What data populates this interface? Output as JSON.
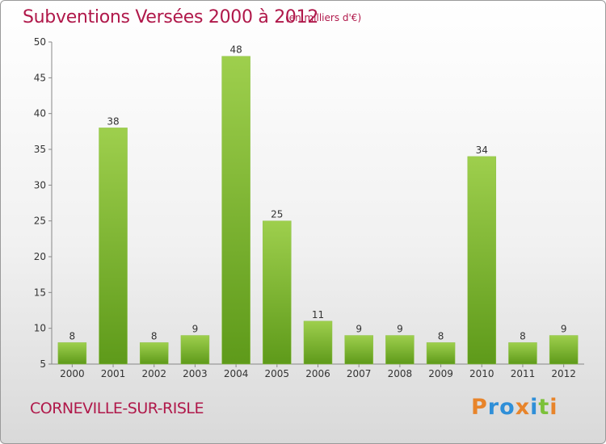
{
  "header": {
    "title": "Subventions Versées 2000 à 2012",
    "subtitle": "(en milliers d'€)"
  },
  "footer": {
    "commune": "CORNEVILLE-SUR-RISLE",
    "logo_text": "Proxiti",
    "logo_colors": [
      "#e8842a",
      "#2f8fd8",
      "#2f8fd8",
      "#e8842a",
      "#2f8fd8",
      "#7cc13a",
      "#e8842a"
    ]
  },
  "chart_data": {
    "type": "bar",
    "title": "Subventions Versées 2000 à 2012",
    "subtitle": "(en milliers d'€)",
    "categories": [
      "2000",
      "2001",
      "2002",
      "2003",
      "2004",
      "2005",
      "2006",
      "2007",
      "2008",
      "2009",
      "2010",
      "2011",
      "2012"
    ],
    "values": [
      8,
      38,
      8,
      9,
      48,
      25,
      11,
      9,
      9,
      8,
      34,
      8,
      9
    ],
    "xlabel": "",
    "ylabel": "",
    "ylim": [
      5,
      50
    ],
    "yticks": [
      5,
      10,
      15,
      20,
      25,
      30,
      35,
      40,
      45,
      50
    ],
    "grid": false,
    "bar_color_top": "#9ecf4d",
    "bar_color_bottom": "#5e9a1a"
  }
}
